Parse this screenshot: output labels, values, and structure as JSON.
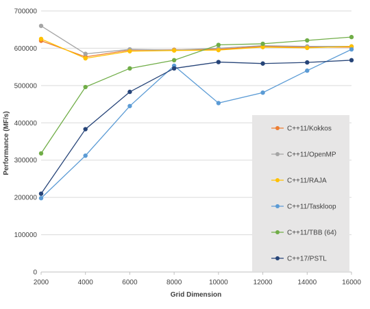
{
  "chart_data": {
    "type": "line",
    "xlabel": "Grid Dimension",
    "ylabel": "Performance (MF/s)",
    "x": [
      2000,
      4000,
      6000,
      8000,
      10000,
      12000,
      14000,
      16000
    ],
    "xlim": [
      2000,
      16000
    ],
    "ylim": [
      0,
      700000
    ],
    "yticks": [
      0,
      100000,
      200000,
      300000,
      400000,
      500000,
      600000,
      700000
    ],
    "grid": "horizontal",
    "legend_position": "right",
    "series": [
      {
        "name": "C++11/Kokkos",
        "color": "#ED7D31",
        "values": [
          620000,
          577000,
          595000,
          596000,
          597000,
          605000,
          603000,
          603000
        ]
      },
      {
        "name": "C++11/OpenMP",
        "color": "#A5A5A5",
        "values": [
          660000,
          585000,
          597000,
          595000,
          600000,
          607000,
          605000,
          605000
        ]
      },
      {
        "name": "C++11/RAJA",
        "color": "#FFC000",
        "values": [
          625000,
          573000,
          592000,
          594000,
          595000,
          603000,
          601000,
          605000
        ]
      },
      {
        "name": "C++11/Taskloop",
        "color": "#5B9BD5",
        "values": [
          198000,
          312000,
          445000,
          553000,
          453000,
          481000,
          540000,
          597000
        ]
      },
      {
        "name": "C++11/TBB (64)",
        "color": "#70AD47",
        "values": [
          318000,
          496000,
          546000,
          568000,
          609000,
          612000,
          621000,
          630000
        ]
      },
      {
        "name": "C++17/PSTL",
        "color": "#264478",
        "values": [
          210000,
          383000,
          483000,
          546000,
          563000,
          559000,
          562000,
          568000
        ]
      }
    ]
  }
}
